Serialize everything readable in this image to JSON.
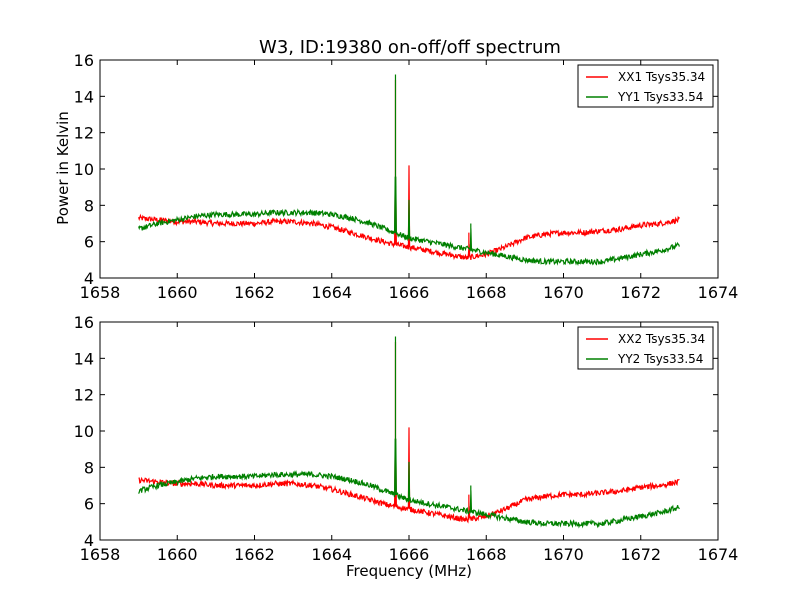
{
  "chart_data": [
    {
      "type": "line",
      "title": "W3, ID:19380 on-off/off spectrum",
      "xlabel": "",
      "ylabel": "Power in Kelvin",
      "xlim": [
        1658,
        1674
      ],
      "ylim": [
        4,
        16
      ],
      "xticks": [
        1658,
        1660,
        1662,
        1664,
        1666,
        1668,
        1670,
        1672,
        1674
      ],
      "yticks": [
        4,
        6,
        8,
        10,
        12,
        14,
        16
      ],
      "legend_position": "top-right",
      "grid": false,
      "series": [
        {
          "name": "XX1 Tsys35.34",
          "color": "#ff0000",
          "x": [
            1659.0,
            1659.5,
            1660.0,
            1660.5,
            1661.0,
            1661.5,
            1662.0,
            1662.5,
            1663.0,
            1663.5,
            1664.0,
            1664.5,
            1665.0,
            1665.5,
            1666.0,
            1666.5,
            1667.0,
            1667.5,
            1668.0,
            1668.5,
            1669.0,
            1669.5,
            1670.0,
            1670.5,
            1671.0,
            1671.5,
            1672.0,
            1672.5,
            1673.0
          ],
          "y": [
            7.3,
            7.2,
            7.1,
            7.1,
            7.0,
            7.0,
            7.0,
            7.1,
            7.1,
            7.0,
            6.8,
            6.5,
            6.2,
            5.9,
            5.7,
            5.5,
            5.3,
            5.1,
            5.3,
            5.7,
            6.2,
            6.4,
            6.5,
            6.5,
            6.6,
            6.7,
            6.9,
            7.0,
            7.2
          ],
          "peaks": [
            {
              "x": 1665.65,
              "y": 14.9
            },
            {
              "x": 1666.0,
              "y": 10.2
            },
            {
              "x": 1667.55,
              "y": 6.5
            }
          ]
        },
        {
          "name": "YY1 Tsys33.54",
          "color": "#008000",
          "x": [
            1659.0,
            1659.5,
            1660.0,
            1660.5,
            1661.0,
            1661.5,
            1662.0,
            1662.5,
            1663.0,
            1663.5,
            1664.0,
            1664.5,
            1665.0,
            1665.5,
            1666.0,
            1666.5,
            1667.0,
            1667.5,
            1668.0,
            1668.5,
            1669.0,
            1669.5,
            1670.0,
            1670.5,
            1671.0,
            1671.5,
            1672.0,
            1672.5,
            1673.0
          ],
          "y": [
            6.7,
            7.0,
            7.2,
            7.4,
            7.5,
            7.5,
            7.5,
            7.6,
            7.6,
            7.6,
            7.5,
            7.3,
            7.0,
            6.6,
            6.2,
            6.0,
            5.8,
            5.6,
            5.4,
            5.2,
            5.0,
            4.9,
            4.9,
            4.9,
            4.9,
            5.1,
            5.3,
            5.5,
            5.8
          ],
          "peaks": [
            {
              "x": 1665.65,
              "y": 15.2
            },
            {
              "x": 1666.0,
              "y": 8.3
            },
            {
              "x": 1667.6,
              "y": 7.0
            }
          ]
        }
      ]
    },
    {
      "type": "line",
      "title": "",
      "xlabel": "Frequency (MHz)",
      "ylabel": "",
      "xlim": [
        1658,
        1674
      ],
      "ylim": [
        4,
        16
      ],
      "xticks": [
        1658,
        1660,
        1662,
        1664,
        1666,
        1668,
        1670,
        1672,
        1674
      ],
      "yticks": [
        4,
        6,
        8,
        10,
        12,
        14,
        16
      ],
      "legend_position": "top-right",
      "grid": false,
      "series": [
        {
          "name": "XX2 Tsys35.34",
          "color": "#ff0000",
          "x": [
            1659.0,
            1659.5,
            1660.0,
            1660.5,
            1661.0,
            1661.5,
            1662.0,
            1662.5,
            1663.0,
            1663.5,
            1664.0,
            1664.5,
            1665.0,
            1665.5,
            1666.0,
            1666.5,
            1667.0,
            1667.5,
            1668.0,
            1668.5,
            1669.0,
            1669.5,
            1670.0,
            1670.5,
            1671.0,
            1671.5,
            1672.0,
            1672.5,
            1673.0
          ],
          "y": [
            7.3,
            7.2,
            7.1,
            7.1,
            7.0,
            7.0,
            7.0,
            7.1,
            7.1,
            7.0,
            6.8,
            6.5,
            6.2,
            5.9,
            5.7,
            5.5,
            5.3,
            5.1,
            5.3,
            5.7,
            6.2,
            6.4,
            6.5,
            6.5,
            6.6,
            6.7,
            6.9,
            7.0,
            7.2
          ],
          "peaks": [
            {
              "x": 1665.65,
              "y": 14.9
            },
            {
              "x": 1666.0,
              "y": 10.2
            },
            {
              "x": 1667.55,
              "y": 6.5
            }
          ]
        },
        {
          "name": "YY2 Tsys33.54",
          "color": "#008000",
          "x": [
            1659.0,
            1659.5,
            1660.0,
            1660.5,
            1661.0,
            1661.5,
            1662.0,
            1662.5,
            1663.0,
            1663.5,
            1664.0,
            1664.5,
            1665.0,
            1665.5,
            1666.0,
            1666.5,
            1667.0,
            1667.5,
            1668.0,
            1668.5,
            1669.0,
            1669.5,
            1670.0,
            1670.5,
            1671.0,
            1671.5,
            1672.0,
            1672.5,
            1673.0
          ],
          "y": [
            6.7,
            7.0,
            7.2,
            7.4,
            7.5,
            7.5,
            7.5,
            7.6,
            7.6,
            7.6,
            7.5,
            7.3,
            7.0,
            6.6,
            6.2,
            6.0,
            5.8,
            5.6,
            5.4,
            5.2,
            5.0,
            4.9,
            4.9,
            4.9,
            4.9,
            5.1,
            5.3,
            5.5,
            5.8
          ],
          "peaks": [
            {
              "x": 1665.65,
              "y": 15.2
            },
            {
              "x": 1666.0,
              "y": 8.3
            },
            {
              "x": 1667.6,
              "y": 7.0
            }
          ]
        }
      ]
    }
  ]
}
